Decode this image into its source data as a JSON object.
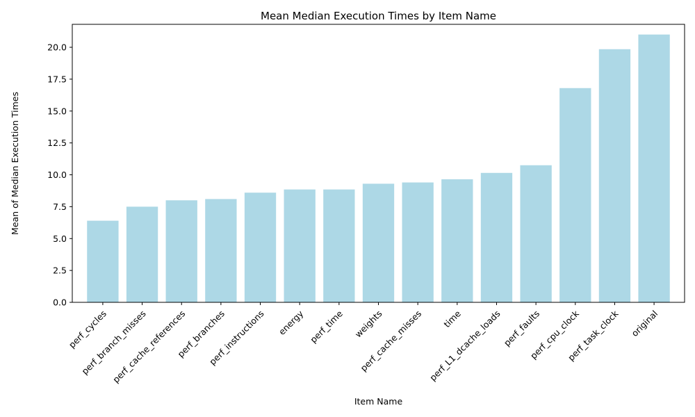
{
  "chart_data": {
    "type": "bar",
    "title": "Mean Median Execution Times by Item Name",
    "xlabel": "Item Name",
    "ylabel": "Mean of Median Execution Times",
    "categories": [
      "perf_cycles",
      "perf_branch_misses",
      "perf_cache_references",
      "perf_branches",
      "perf_instructions",
      "energy",
      "perf_time",
      "weights",
      "perf_cache_misses",
      "time",
      "perf_L1_dcache_loads",
      "perf_faults",
      "perf_cpu_clock",
      "perf_task_clock",
      "original"
    ],
    "values": [
      6.4,
      7.5,
      8.0,
      8.1,
      8.6,
      8.85,
      8.85,
      9.3,
      9.4,
      9.65,
      10.15,
      10.75,
      16.8,
      19.85,
      21.0
    ],
    "ylim": [
      0,
      21.8
    ],
    "yticks": [
      "0.0",
      "2.5",
      "5.0",
      "7.5",
      "10.0",
      "12.5",
      "15.0",
      "17.5",
      "20.0"
    ],
    "bar_color": "#add8e6",
    "grid": false,
    "legend": "none"
  }
}
